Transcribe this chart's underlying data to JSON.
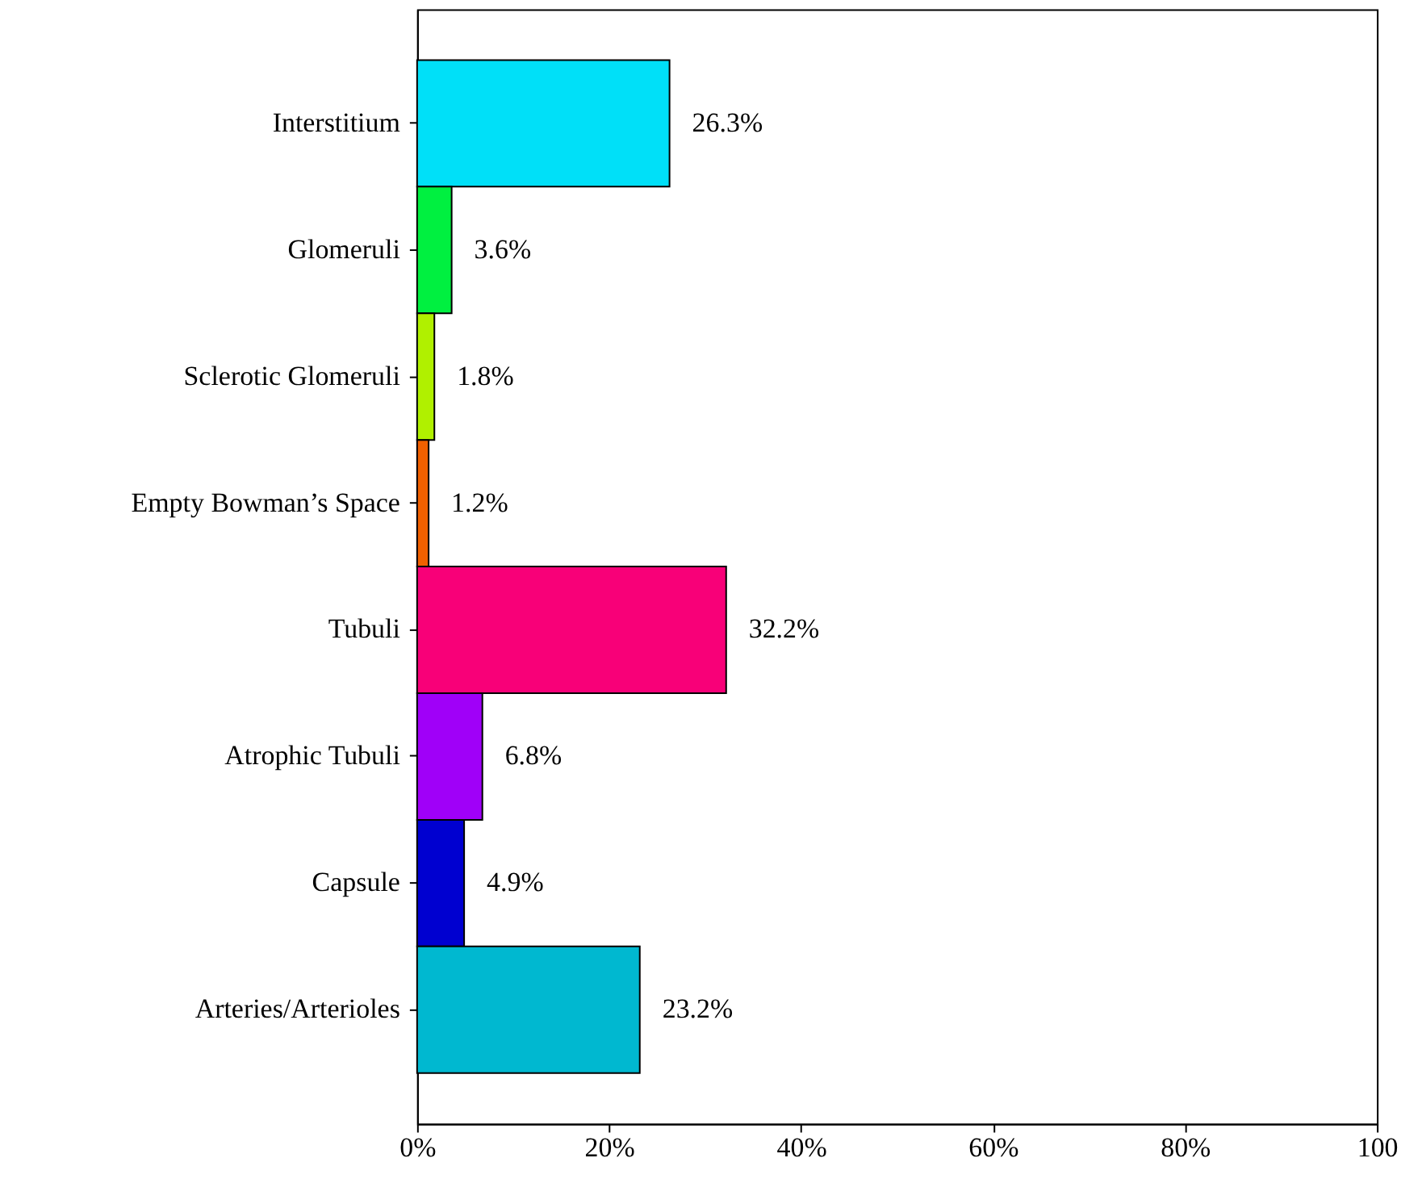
{
  "chart_data": {
    "type": "bar",
    "orientation": "horizontal",
    "categories": [
      "Interstitium",
      "Glomeruli",
      "Sclerotic Glomeruli",
      "Empty Bowman’s Space",
      "Tubuli",
      "Atrophic Tubuli",
      "Capsule",
      "Arteries/Arterioles"
    ],
    "values": [
      26.3,
      3.6,
      1.8,
      1.2,
      32.2,
      6.8,
      4.9,
      23.2
    ],
    "colors": [
      "#00e0f8",
      "#00f040",
      "#b0f000",
      "#f06000",
      "#f80078",
      "#a000f8",
      "#0000d0",
      "#00b8d0"
    ],
    "value_labels": [
      "26.3%",
      "3.6%",
      "1.8%",
      "1.2%",
      "32.2%",
      "6.8%",
      "4.9%",
      "23.2%"
    ],
    "xlim": [
      0,
      100
    ],
    "xticks": [
      {
        "value": 0,
        "label": "0%"
      },
      {
        "value": 20,
        "label": "20%"
      },
      {
        "value": 40,
        "label": "40%"
      },
      {
        "value": 60,
        "label": "60%"
      },
      {
        "value": 80,
        "label": "80%"
      },
      100
    ],
    "grid": false
  }
}
